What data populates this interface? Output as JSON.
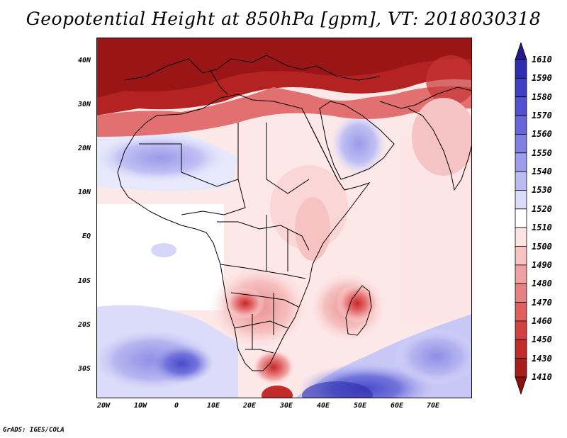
{
  "title": "Geopotential Height at 850hPa [gpm], VT: 2018030318",
  "credit": "GrADS: IGES/COLA",
  "lat_labels": [
    "40N",
    "30N",
    "20N",
    "10N",
    "EQ",
    "10S",
    "20S",
    "30S"
  ],
  "lon_labels": [
    "20W",
    "10W",
    "0",
    "10E",
    "20E",
    "30E",
    "40E",
    "50E",
    "60E",
    "70E"
  ],
  "colorbar_levels": [
    "1610",
    "1590",
    "1580",
    "1570",
    "1560",
    "1550",
    "1540",
    "1530",
    "1520",
    "1510",
    "1500",
    "1490",
    "1480",
    "1470",
    "1460",
    "1450",
    "1430",
    "1410"
  ],
  "colorbar_colors": [
    "#251a8c",
    "#2e2eae",
    "#3f3fc4",
    "#5252d0",
    "#6767da",
    "#8080e2",
    "#9d9deb",
    "#bbbbf3",
    "#dcdcfa",
    "#ffffff",
    "#fde3e3",
    "#f7c3c3",
    "#f0a2a2",
    "#e78080",
    "#dd5f5f",
    "#d24040",
    "#c22a2a",
    "#a81c1c",
    "#8b1111"
  ]
}
